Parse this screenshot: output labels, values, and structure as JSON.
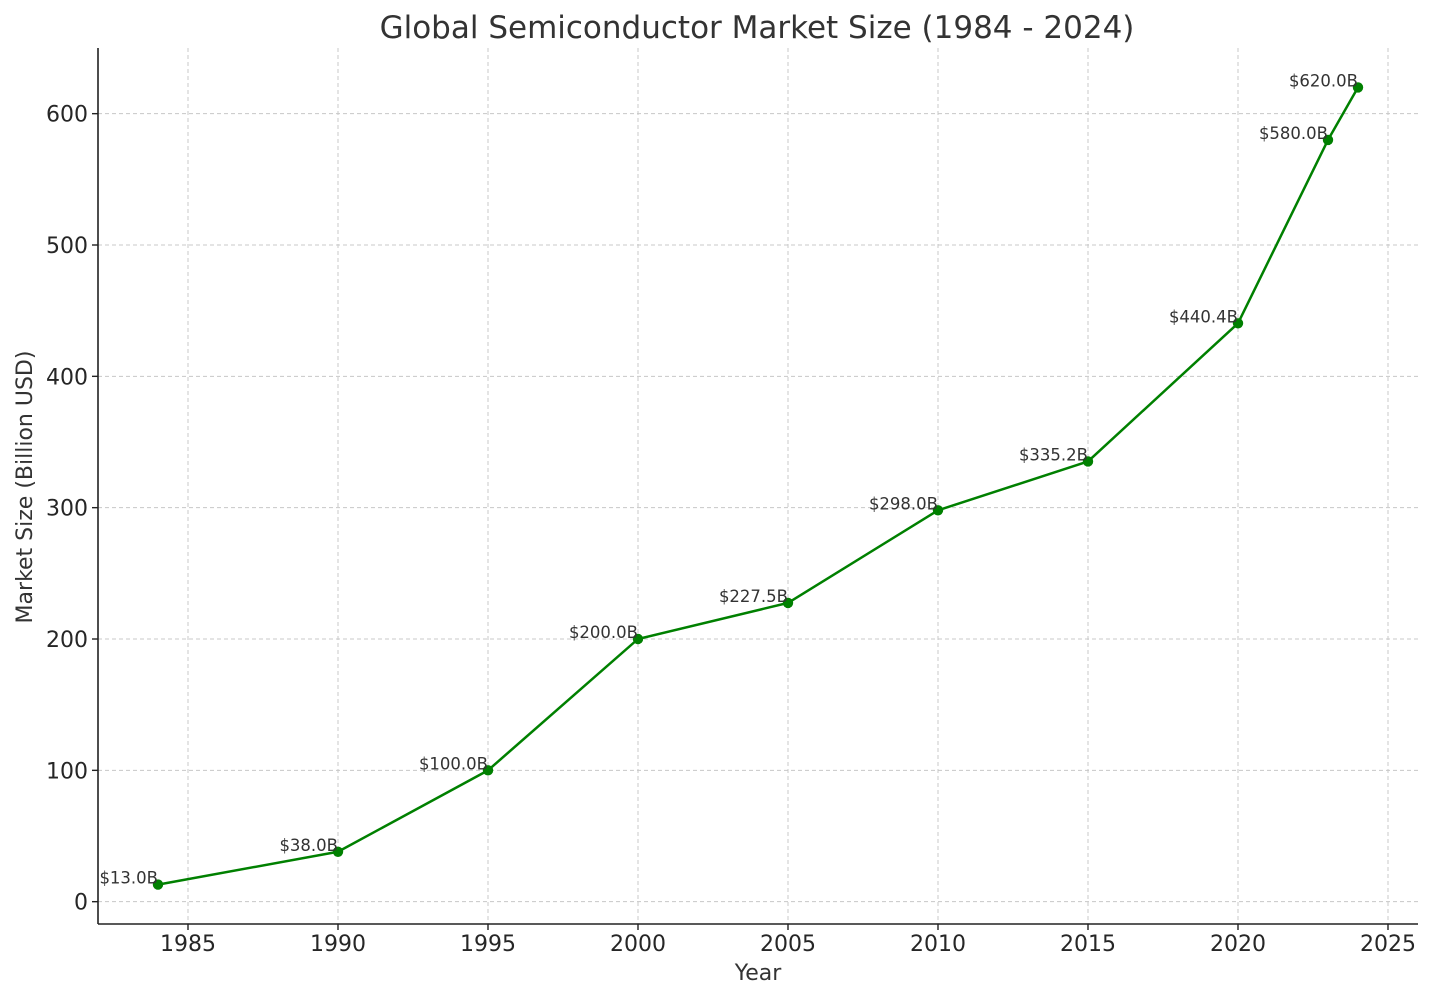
{
  "chart_data": {
    "type": "line",
    "title": "Global Semiconductor Market Size (1984 - 2024)",
    "xlabel": "Year",
    "ylabel": "Market Size (Billion USD)",
    "x": [
      1984,
      1990,
      1995,
      2000,
      2005,
      2010,
      2015,
      2020,
      2023,
      2024
    ],
    "series": [
      {
        "values": [
          13.0,
          38.0,
          100.0,
          200.0,
          227.5,
          298.0,
          335.2,
          440.4,
          580.0,
          620.0
        ],
        "color": "#008000",
        "marker": "circle"
      }
    ],
    "data_labels": [
      "$13.0B",
      "$38.0B",
      "$100.0B",
      "$200.0B",
      "$227.5B",
      "$298.0B",
      "$335.2B",
      "$440.4B",
      "$580.0B",
      "$620.0B"
    ],
    "xlim": [
      1982,
      2026
    ],
    "ylim": [
      -17,
      650
    ],
    "x_ticks": [
      1985,
      1990,
      1995,
      2000,
      2005,
      2010,
      2015,
      2020,
      2025
    ],
    "x_tick_labels": [
      "1985",
      "1990",
      "1995",
      "2000",
      "2005",
      "2010",
      "2015",
      "2020",
      "2025"
    ],
    "y_ticks": [
      0,
      100,
      200,
      300,
      400,
      500,
      600
    ],
    "y_tick_labels": [
      "0",
      "100",
      "200",
      "300",
      "400",
      "500",
      "600"
    ],
    "grid": true,
    "legend": "none"
  }
}
